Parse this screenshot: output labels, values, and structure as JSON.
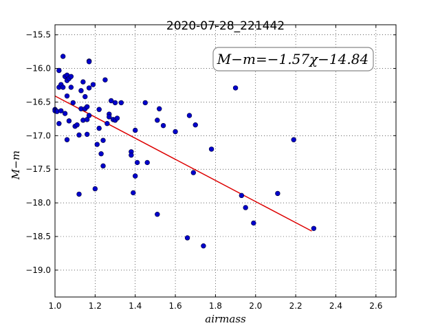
{
  "chart_data": {
    "type": "scatter",
    "title": "2020-07-28_221442",
    "xlabel": "airmass",
    "ylabel": "M−m",
    "annotation": "M−m=−1.57χ−14.84",
    "xlim": [
      1.0,
      2.7
    ],
    "ylim": [
      -19.4,
      -15.35
    ],
    "y_inverted": true,
    "grid": true,
    "x_ticks": [
      1.0,
      1.2,
      1.4,
      1.6,
      1.8,
      2.0,
      2.2,
      2.4,
      2.6
    ],
    "x_tick_labels": [
      "1.0",
      "1.2",
      "1.4",
      "1.6",
      "1.8",
      "2.0",
      "2.2",
      "2.4",
      "2.6"
    ],
    "y_ticks": [
      -15.5,
      -16.0,
      -16.5,
      -17.0,
      -17.5,
      -18.0,
      -18.5,
      -19.0
    ],
    "y_tick_labels": [
      "−15.5",
      "−16.0",
      "−16.5",
      "−17.0",
      "−17.5",
      "−18.0",
      "−18.5",
      "−19.0"
    ],
    "points_color": "#0000cc",
    "fit_color": "#dd0000",
    "fit": {
      "slope": -1.57,
      "intercept": -14.84,
      "x_range": [
        1.0,
        2.28
      ]
    },
    "points": [
      [
        1.0,
        -16.61
      ],
      [
        1.0,
        -16.63
      ],
      [
        1.01,
        -16.64
      ],
      [
        1.02,
        -16.03
      ],
      [
        1.02,
        -16.28
      ],
      [
        1.02,
        -16.82
      ],
      [
        1.03,
        -16.24
      ],
      [
        1.03,
        -16.63
      ],
      [
        1.04,
        -15.82
      ],
      [
        1.04,
        -16.28
      ],
      [
        1.05,
        -16.12
      ],
      [
        1.05,
        -16.67
      ],
      [
        1.06,
        -16.1
      ],
      [
        1.06,
        -16.18
      ],
      [
        1.06,
        -16.41
      ],
      [
        1.06,
        -17.06
      ],
      [
        1.07,
        -16.15
      ],
      [
        1.07,
        -16.78
      ],
      [
        1.08,
        -16.12
      ],
      [
        1.08,
        -16.28
      ],
      [
        1.09,
        -16.51
      ],
      [
        1.1,
        -16.86
      ],
      [
        1.11,
        -16.84
      ],
      [
        1.12,
        -16.99
      ],
      [
        1.12,
        -17.87
      ],
      [
        1.13,
        -16.33
      ],
      [
        1.13,
        -16.6
      ],
      [
        1.14,
        -16.2
      ],
      [
        1.14,
        -16.77
      ],
      [
        1.15,
        -16.42
      ],
      [
        1.15,
        -16.6
      ],
      [
        1.16,
        -16.57
      ],
      [
        1.16,
        -16.76
      ],
      [
        1.16,
        -16.98
      ],
      [
        1.17,
        -15.89
      ],
      [
        1.17,
        -15.9
      ],
      [
        1.17,
        -16.29
      ],
      [
        1.17,
        -16.7
      ],
      [
        1.19,
        -16.24
      ],
      [
        1.2,
        -17.79
      ],
      [
        1.21,
        -17.13
      ],
      [
        1.22,
        -16.61
      ],
      [
        1.22,
        -16.89
      ],
      [
        1.23,
        -17.27
      ],
      [
        1.24,
        -17.07
      ],
      [
        1.24,
        -17.45
      ],
      [
        1.25,
        -16.17
      ],
      [
        1.26,
        -16.82
      ],
      [
        1.27,
        -16.68
      ],
      [
        1.27,
        -16.72
      ],
      [
        1.28,
        -16.48
      ],
      [
        1.29,
        -16.76
      ],
      [
        1.3,
        -16.51
      ],
      [
        1.3,
        -16.77
      ],
      [
        1.31,
        -16.74
      ],
      [
        1.33,
        -16.51
      ],
      [
        1.38,
        -17.24
      ],
      [
        1.38,
        -17.29
      ],
      [
        1.39,
        -17.85
      ],
      [
        1.4,
        -16.92
      ],
      [
        1.4,
        -17.6
      ],
      [
        1.41,
        -17.4
      ],
      [
        1.45,
        -16.51
      ],
      [
        1.46,
        -17.4
      ],
      [
        1.51,
        -16.77
      ],
      [
        1.51,
        -18.17
      ],
      [
        1.52,
        -16.6
      ],
      [
        1.54,
        -16.85
      ],
      [
        1.6,
        -16.94
      ],
      [
        1.66,
        -18.52
      ],
      [
        1.67,
        -16.7
      ],
      [
        1.69,
        -17.55
      ],
      [
        1.7,
        -16.84
      ],
      [
        1.74,
        -18.64
      ],
      [
        1.78,
        -17.2
      ],
      [
        1.9,
        -16.29
      ],
      [
        1.93,
        -17.89
      ],
      [
        1.95,
        -18.07
      ],
      [
        1.99,
        -18.3
      ],
      [
        2.11,
        -17.86
      ],
      [
        2.19,
        -17.06
      ],
      [
        2.29,
        -18.38
      ]
    ]
  }
}
